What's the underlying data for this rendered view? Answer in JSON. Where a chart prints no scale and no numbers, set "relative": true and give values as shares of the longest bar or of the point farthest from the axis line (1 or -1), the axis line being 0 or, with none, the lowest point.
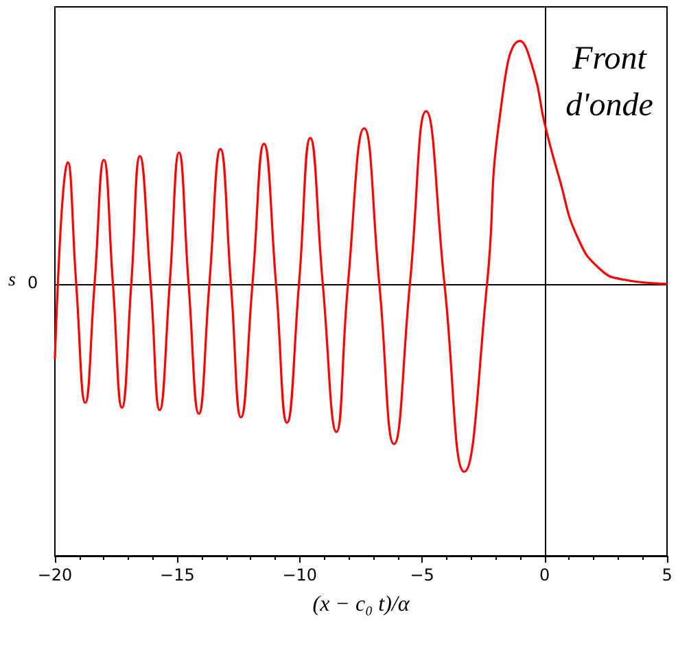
{
  "chart_data": {
    "type": "line",
    "relative": true,
    "xlabel": "(x − c₀ t)/α",
    "ylabel": "s",
    "xlim": [
      -20,
      5
    ],
    "xticks": [
      -20,
      -15,
      -10,
      -5,
      0,
      5
    ],
    "marker": "none",
    "line_style": "solid",
    "annotations": [
      "Front d'onde",
      "0"
    ],
    "series": [
      {
        "color": "#ff0000",
        "x": [
          -20,
          -19.47,
          -19.13,
          -18.76,
          -18.38,
          -18.0,
          -17.63,
          -17.26,
          -16.88,
          -16.53,
          -16.09,
          -15.72,
          -15.31,
          -14.93,
          -14.54,
          -14.12,
          -13.69,
          -13.24,
          -12.81,
          -12.4,
          -11.93,
          -11.46,
          -10.97,
          -10.52,
          -10.03,
          -9.57,
          -9.06,
          -8.5,
          -8.03,
          -7.37,
          -6.75,
          -6.15,
          -5.5,
          -4.84,
          -4.09,
          -3.28,
          -2.35,
          -1.84,
          -1.0,
          -0.43,
          0,
          0.6,
          1.35,
          2.29,
          3.23,
          5
        ],
        "values": [
          -0.31,
          0.5,
          0,
          -0.49,
          0,
          0.51,
          0,
          -0.51,
          0,
          0.525,
          0,
          -0.52,
          0,
          0.54,
          0,
          -0.535,
          0,
          0.555,
          0,
          -0.55,
          0,
          0.576,
          0,
          -0.572,
          0,
          0.6,
          0,
          -0.61,
          0,
          0.64,
          0,
          -0.66,
          0,
          0.71,
          0,
          -0.774,
          0,
          0.68,
          1,
          0.87,
          0.66,
          0.435,
          0.19,
          0.058,
          0.017,
          0
        ]
      }
    ]
  }
}
